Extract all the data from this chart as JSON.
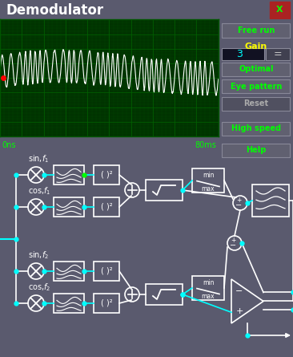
{
  "title": "Demodulator",
  "bg_color": "#5a5a6e",
  "title_bar_color": "#1a6abf",
  "title_text_color": "#ffffff",
  "oscilloscope_bg": "#003300",
  "oscilloscope_grid_color": "#006600",
  "signal_color": "#ffffff",
  "cyan_color": "#00ffff",
  "green_color": "#00ff00",
  "red_color": "#ff0000",
  "yellow_color": "#ffff00",
  "button_bg": "#6a6a7a",
  "box_border": "#ffffff",
  "osc_x_label_left": "0ns",
  "osc_x_label_right": "80ms",
  "gain_value": "3"
}
